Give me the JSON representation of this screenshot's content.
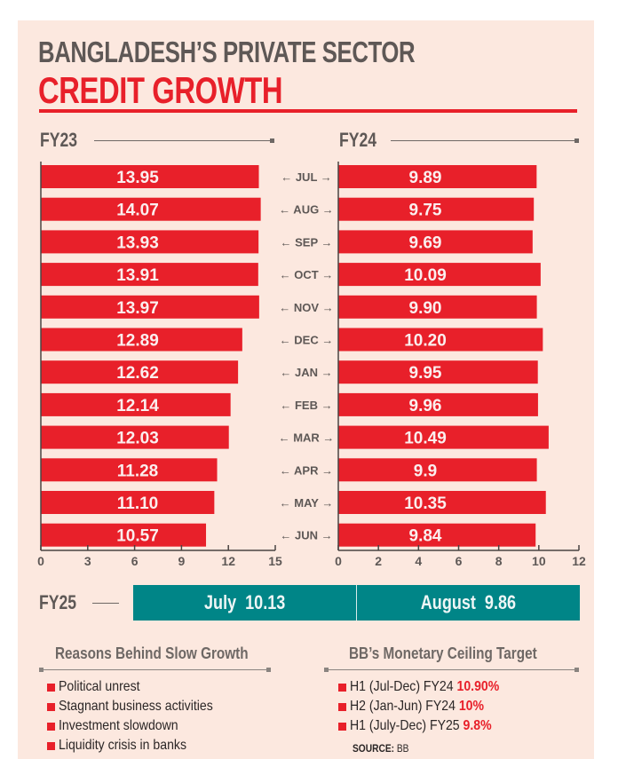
{
  "header": {
    "title_line1": "BANGLADESH’S PRIVATE SECTOR",
    "title_line2": "CREDIT GROWTH"
  },
  "colors": {
    "bar": "#e8202a",
    "accent_red": "#e8202a",
    "teal": "#008587",
    "text_gray": "#5e5856",
    "background": "#fce8df"
  },
  "chart_data": [
    {
      "type": "bar",
      "orientation": "horizontal",
      "title": "FY23",
      "categories": [
        "JUL",
        "AUG",
        "SEP",
        "OCT",
        "NOV",
        "DEC",
        "JAN",
        "FEB",
        "MAR",
        "APR",
        "MAY",
        "JUN"
      ],
      "values": [
        13.95,
        14.07,
        13.93,
        13.91,
        13.97,
        12.89,
        12.62,
        12.14,
        12.03,
        11.28,
        11.1,
        10.57
      ],
      "value_labels": [
        "13.95",
        "14.07",
        "13.93",
        "13.91",
        "13.97",
        "12.89",
        "12.62",
        "12.14",
        "12.03",
        "11.28",
        "11.10",
        "10.57"
      ],
      "xlim": [
        0,
        15
      ],
      "xticks": [
        0,
        3,
        6,
        9,
        12,
        15
      ],
      "xlabel": "",
      "ylabel": "",
      "grid": false
    },
    {
      "type": "bar",
      "orientation": "horizontal",
      "title": "FY24",
      "categories": [
        "JUL",
        "AUG",
        "SEP",
        "OCT",
        "NOV",
        "DEC",
        "JAN",
        "FEB",
        "MAR",
        "APR",
        "MAY",
        "JUN"
      ],
      "values": [
        9.89,
        9.75,
        9.69,
        10.09,
        9.9,
        10.2,
        9.95,
        9.96,
        10.49,
        9.9,
        10.35,
        9.84
      ],
      "value_labels": [
        "9.89",
        "9.75",
        "9.69",
        "10.09",
        "9.90",
        "10.20",
        "9.95",
        "9.96",
        "10.49",
        "9.9",
        "10.35",
        "9.84"
      ],
      "xlim": [
        0,
        12
      ],
      "xticks": [
        0,
        2,
        4,
        6,
        8,
        10,
        12
      ],
      "xlabel": "",
      "ylabel": "",
      "grid": false
    }
  ],
  "months_display": [
    "← JUL →",
    "← AUG →",
    "← SEP →",
    "← OCT →",
    "← NOV →",
    "← DEC →",
    "← JAN →",
    "← FEB →",
    "← MAR →",
    "← APR →",
    "← MAY →",
    "← JUN →"
  ],
  "fy25": {
    "label": "FY25",
    "cells": [
      {
        "text": "July  10.13",
        "month": "July",
        "value": 10.13
      },
      {
        "text": "August  9.86",
        "month": "August",
        "value": 9.86
      }
    ]
  },
  "reasons": {
    "title": "Reasons Behind Slow Growth",
    "items": [
      "Political unrest",
      "Stagnant business activities",
      "Investment slowdown",
      "Liquidity crisis in banks"
    ]
  },
  "ceiling": {
    "title": "BB’s Monetary Ceiling Target",
    "items": [
      {
        "label": "H1 (Jul-Dec) FY24 ",
        "value": "10.90%"
      },
      {
        "label": "H2 (Jan-Jun) FY24 ",
        "value": "10%"
      },
      {
        "label": "H1 (July-Dec) FY25 ",
        "value": "9.8%"
      }
    ]
  },
  "source": {
    "prefix": "SOURCE:",
    "text": " BB"
  }
}
